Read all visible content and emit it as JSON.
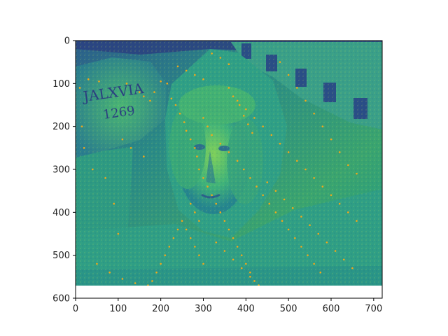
{
  "figure": {
    "image_description_colormap": "viridis",
    "keypoint_color": "#f0a81a"
  },
  "chart_data": {
    "type": "scatter",
    "title": "",
    "xlabel": "",
    "ylabel": "",
    "xlim": [
      0,
      720
    ],
    "ylim": [
      600,
      0
    ],
    "x_ticks": [
      0,
      100,
      200,
      300,
      400,
      500,
      600,
      700
    ],
    "y_ticks": [
      0,
      100,
      200,
      300,
      400,
      500,
      600
    ],
    "image_extent": {
      "width": 720,
      "height": 575
    },
    "points": [
      [
        10,
        110
      ],
      [
        30,
        90
      ],
      [
        55,
        95
      ],
      [
        120,
        100
      ],
      [
        150,
        120
      ],
      [
        160,
        130
      ],
      [
        175,
        140
      ],
      [
        185,
        120
      ],
      [
        200,
        95
      ],
      [
        215,
        100
      ],
      [
        225,
        135
      ],
      [
        235,
        150
      ],
      [
        245,
        170
      ],
      [
        255,
        190
      ],
      [
        260,
        210
      ],
      [
        270,
        230
      ],
      [
        280,
        250
      ],
      [
        285,
        270
      ],
      [
        290,
        300
      ],
      [
        300,
        320
      ],
      [
        310,
        340
      ],
      [
        320,
        360
      ],
      [
        330,
        380
      ],
      [
        340,
        400
      ],
      [
        350,
        420
      ],
      [
        360,
        440
      ],
      [
        370,
        460
      ],
      [
        380,
        480
      ],
      [
        390,
        500
      ],
      [
        400,
        520
      ],
      [
        410,
        540
      ],
      [
        420,
        560
      ],
      [
        240,
        60
      ],
      [
        260,
        70
      ],
      [
        280,
        80
      ],
      [
        300,
        90
      ],
      [
        320,
        30
      ],
      [
        340,
        40
      ],
      [
        360,
        55
      ],
      [
        380,
        140
      ],
      [
        400,
        160
      ],
      [
        420,
        180
      ],
      [
        440,
        200
      ],
      [
        460,
        220
      ],
      [
        480,
        240
      ],
      [
        500,
        260
      ],
      [
        520,
        280
      ],
      [
        540,
        300
      ],
      [
        560,
        320
      ],
      [
        580,
        340
      ],
      [
        600,
        360
      ],
      [
        620,
        380
      ],
      [
        640,
        400
      ],
      [
        660,
        420
      ],
      [
        250,
        420
      ],
      [
        240,
        440
      ],
      [
        230,
        460
      ],
      [
        220,
        480
      ],
      [
        210,
        500
      ],
      [
        200,
        520
      ],
      [
        190,
        540
      ],
      [
        180,
        560
      ],
      [
        150,
        575
      ],
      [
        100,
        450
      ],
      [
        90,
        380
      ],
      [
        70,
        320
      ],
      [
        40,
        300
      ],
      [
        20,
        250
      ],
      [
        15,
        200
      ],
      [
        110,
        230
      ],
      [
        130,
        250
      ],
      [
        160,
        270
      ],
      [
        450,
        330
      ],
      [
        470,
        350
      ],
      [
        490,
        370
      ],
      [
        510,
        390
      ],
      [
        530,
        410
      ],
      [
        550,
        430
      ],
      [
        570,
        450
      ],
      [
        590,
        470
      ],
      [
        610,
        490
      ],
      [
        630,
        510
      ],
      [
        650,
        530
      ],
      [
        300,
        180
      ],
      [
        310,
        200
      ],
      [
        320,
        220
      ],
      [
        340,
        240
      ],
      [
        360,
        260
      ],
      [
        380,
        280
      ],
      [
        395,
        300
      ],
      [
        410,
        320
      ],
      [
        425,
        340
      ],
      [
        440,
        360
      ],
      [
        455,
        380
      ],
      [
        470,
        400
      ],
      [
        485,
        420
      ],
      [
        500,
        440
      ],
      [
        515,
        460
      ],
      [
        530,
        480
      ],
      [
        545,
        500
      ],
      [
        560,
        520
      ],
      [
        575,
        540
      ],
      [
        270,
        380
      ],
      [
        280,
        400
      ],
      [
        290,
        420
      ],
      [
        260,
        440
      ],
      [
        270,
        460
      ],
      [
        280,
        480
      ],
      [
        290,
        500
      ],
      [
        300,
        520
      ],
      [
        330,
        470
      ],
      [
        350,
        490
      ],
      [
        370,
        510
      ],
      [
        390,
        530
      ],
      [
        410,
        550
      ],
      [
        430,
        570
      ],
      [
        480,
        50
      ],
      [
        500,
        80
      ],
      [
        520,
        110
      ],
      [
        540,
        140
      ],
      [
        560,
        170
      ],
      [
        580,
        200
      ],
      [
        600,
        230
      ],
      [
        620,
        260
      ],
      [
        640,
        290
      ],
      [
        660,
        310
      ],
      [
        50,
        520
      ],
      [
        80,
        540
      ],
      [
        110,
        555
      ],
      [
        140,
        565
      ],
      [
        170,
        570
      ],
      [
        360,
        110
      ],
      [
        370,
        130
      ],
      [
        385,
        150
      ],
      [
        395,
        175
      ],
      [
        405,
        195
      ],
      [
        415,
        215
      ]
    ]
  }
}
